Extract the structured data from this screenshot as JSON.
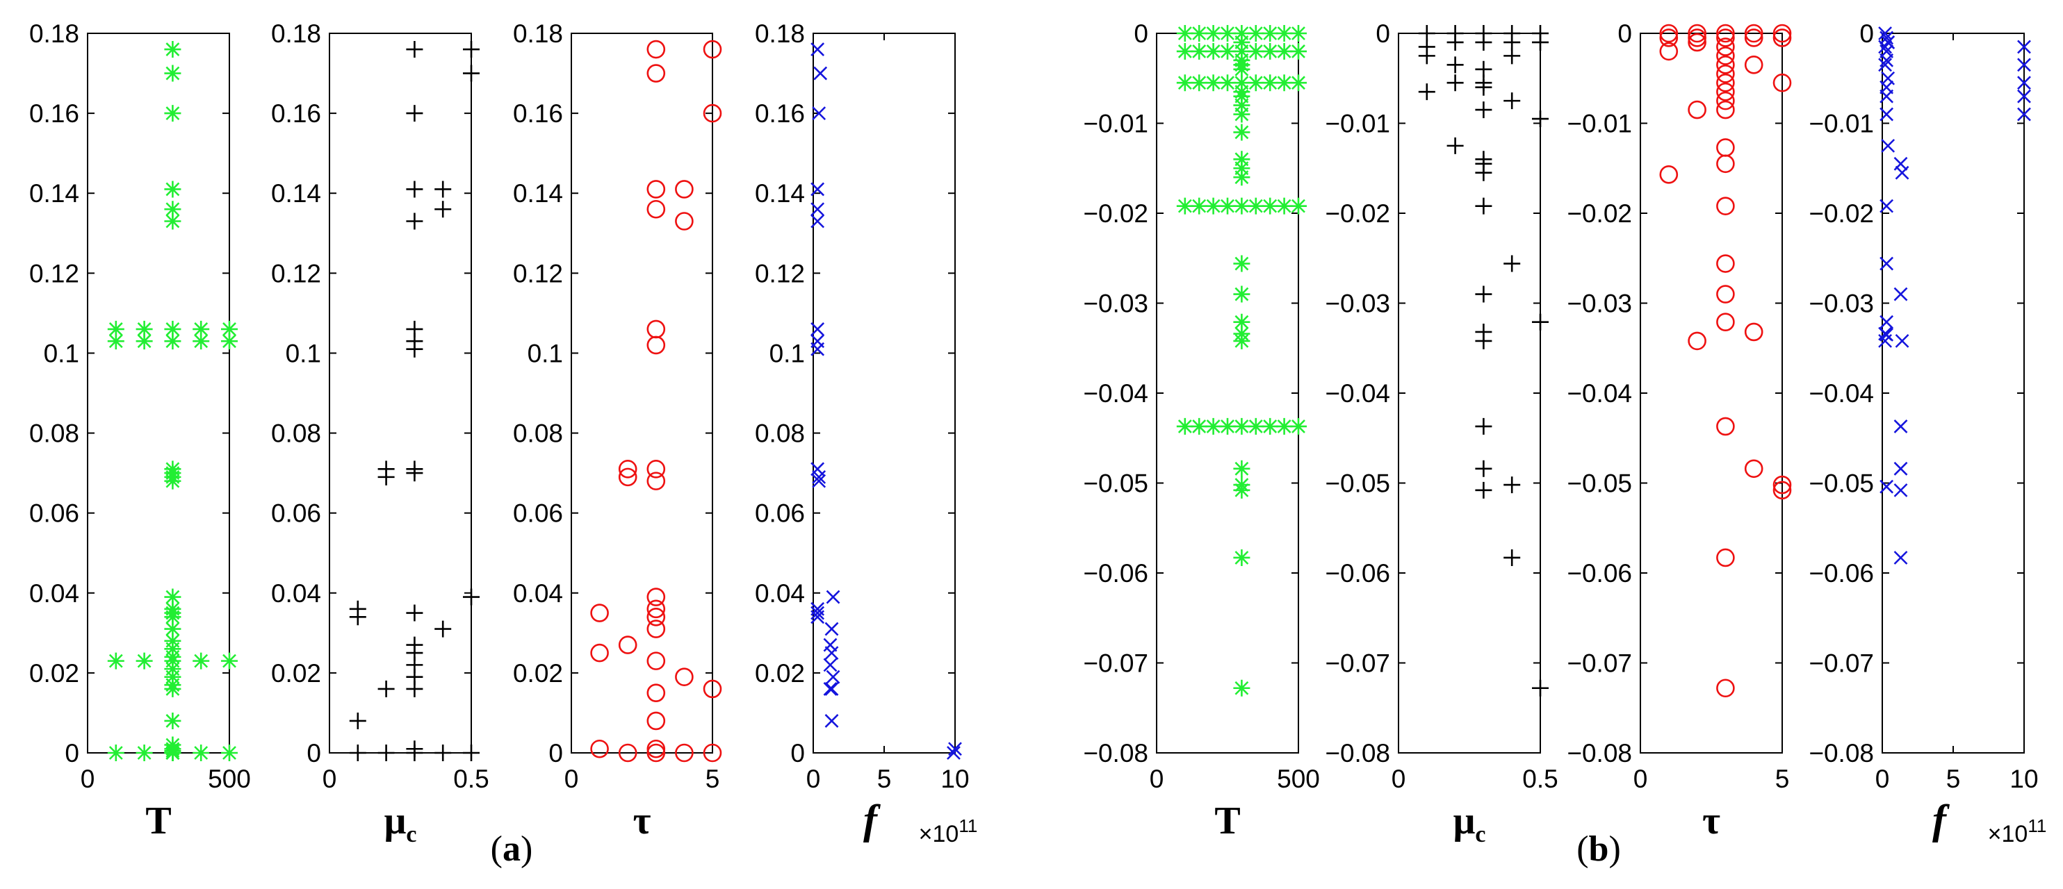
{
  "figure": {
    "panel_labels": [
      {
        "open": "(",
        "letter": "a",
        "close": ")"
      },
      {
        "open": "(",
        "letter": "b",
        "close": ")"
      }
    ]
  },
  "chart_data": [
    {
      "id": "a-T",
      "type": "scatter",
      "marker": "asterisk",
      "color": "#22ee33",
      "xlabel": "T",
      "xlabel_style": "bold",
      "xlim": [
        0,
        500
      ],
      "ylim": [
        0,
        0.18
      ],
      "xticks": [
        {
          "v": 0,
          "label": "0"
        },
        {
          "v": 500,
          "label": "500"
        }
      ],
      "yticks": [
        0,
        0.02,
        0.04,
        0.06,
        0.08,
        0.1,
        0.12,
        0.14,
        0.16,
        0.18
      ],
      "ytick_labels": [
        "0",
        "0.02",
        "0.04",
        "0.06",
        "0.08",
        "0.1",
        "0.12",
        "0.14",
        "0.16",
        "0.18"
      ],
      "x": [
        300,
        300,
        300,
        300,
        300,
        300,
        300,
        100,
        200,
        400,
        500,
        100,
        200,
        400,
        500,
        300,
        300,
        300,
        300,
        300,
        300,
        300,
        300,
        300,
        300,
        300,
        300,
        300,
        300,
        300,
        300,
        300,
        300,
        300,
        300,
        300,
        300,
        300,
        300,
        300,
        300,
        300,
        300,
        100,
        200,
        400,
        500,
        100,
        200,
        400,
        500
      ],
      "y": [
        0.176,
        0.17,
        0.16,
        0.141,
        0.136,
        0.133,
        0.106,
        0.106,
        0.106,
        0.106,
        0.106,
        0.103,
        0.103,
        0.103,
        0.103,
        0.103,
        0.071,
        0.07,
        0.069,
        0.068,
        0.039,
        0.036,
        0.035,
        0.034,
        0.031,
        0.028,
        0.026,
        0.024,
        0.023,
        0.021,
        0.019,
        0.017,
        0.016,
        0.008,
        0.002,
        0.001,
        0.0005,
        0.0,
        0.0,
        0.0,
        0.0,
        0.0,
        0.0,
        0.023,
        0.023,
        0.023,
        0.023,
        0.0,
        0.0,
        0.0,
        0.0
      ]
    },
    {
      "id": "a-mu",
      "type": "scatter",
      "marker": "plus",
      "color": "#000000",
      "xlabel": "μ",
      "xlabel_sub": "c",
      "xlim": [
        0,
        0.5
      ],
      "ylim": [
        0,
        0.18
      ],
      "xticks": [
        {
          "v": 0,
          "label": "0"
        },
        {
          "v": 0.5,
          "label": "0.5"
        }
      ],
      "yticks": [
        0,
        0.02,
        0.04,
        0.06,
        0.08,
        0.1,
        0.12,
        0.14,
        0.16,
        0.18
      ],
      "ytick_labels": [
        "0",
        "0.02",
        "0.04",
        "0.06",
        "0.08",
        "0.1",
        "0.12",
        "0.14",
        "0.16",
        "0.18"
      ],
      "x": [
        0.3,
        0.5,
        0.5,
        0.3,
        0.3,
        0.4,
        0.3,
        0.4,
        0.3,
        0.3,
        0.3,
        0.2,
        0.2,
        0.3,
        0.3,
        0.1,
        0.1,
        0.5,
        0.3,
        0.4,
        0.3,
        0.3,
        0.3,
        0.3,
        0.3,
        0.2,
        0.1,
        0.1,
        0.2,
        0.3,
        0.3,
        0.4,
        0.5
      ],
      "y": [
        0.176,
        0.176,
        0.17,
        0.16,
        0.141,
        0.141,
        0.133,
        0.136,
        0.106,
        0.103,
        0.101,
        0.071,
        0.069,
        0.071,
        0.07,
        0.036,
        0.034,
        0.039,
        0.035,
        0.031,
        0.027,
        0.025,
        0.022,
        0.019,
        0.016,
        0.016,
        0.008,
        0.0,
        0.0,
        0.001,
        0.0,
        0.0,
        0.0
      ]
    },
    {
      "id": "a-tau",
      "type": "scatter",
      "marker": "circle",
      "color": "#ee1111",
      "xlabel": "τ",
      "xlim": [
        0,
        5
      ],
      "ylim": [
        0,
        0.18
      ],
      "xticks": [
        {
          "v": 0,
          "label": "0"
        },
        {
          "v": 5,
          "label": "5"
        }
      ],
      "yticks": [
        0,
        0.02,
        0.04,
        0.06,
        0.08,
        0.1,
        0.12,
        0.14,
        0.16,
        0.18
      ],
      "ytick_labels": [
        "0",
        "0.02",
        "0.04",
        "0.06",
        "0.08",
        "0.1",
        "0.12",
        "0.14",
        "0.16",
        "0.18"
      ],
      "x": [
        3,
        5,
        3,
        5,
        3,
        4,
        3,
        4,
        3,
        3,
        2,
        2,
        3,
        3,
        1,
        1,
        2,
        3,
        3,
        3,
        3,
        3,
        4,
        5,
        3,
        3,
        1,
        2,
        3,
        3,
        4,
        5
      ],
      "y": [
        0.176,
        0.176,
        0.17,
        0.16,
        0.141,
        0.141,
        0.136,
        0.133,
        0.106,
        0.102,
        0.071,
        0.069,
        0.071,
        0.068,
        0.035,
        0.025,
        0.027,
        0.039,
        0.036,
        0.034,
        0.031,
        0.023,
        0.019,
        0.016,
        0.015,
        0.008,
        0.001,
        0.0,
        0.0,
        0.001,
        0.0,
        0.0
      ]
    },
    {
      "id": "a-f",
      "type": "scatter",
      "marker": "cross",
      "color": "#1515dd",
      "xlabel": "f",
      "xlabel_style": "bold-italic",
      "exponent_label": "×10",
      "exponent_power": "11",
      "xlim": [
        0,
        10
      ],
      "ylim": [
        0,
        0.18
      ],
      "xticks": [
        {
          "v": 0,
          "label": "0"
        },
        {
          "v": 5,
          "label": "5"
        },
        {
          "v": 10,
          "label": "10"
        }
      ],
      "yticks": [
        0,
        0.02,
        0.04,
        0.06,
        0.08,
        0.1,
        0.12,
        0.14,
        0.16,
        0.18
      ],
      "ytick_labels": [
        "0",
        "0.02",
        "0.04",
        "0.06",
        "0.08",
        "0.1",
        "0.12",
        "0.14",
        "0.16",
        "0.18"
      ],
      "x": [
        0.3,
        0.5,
        0.4,
        0.3,
        0.3,
        0.3,
        0.3,
        0.3,
        0.3,
        0.3,
        0.4,
        0.4,
        0.3,
        0.3,
        0.3,
        1.4,
        1.3,
        1.2,
        1.3,
        1.2,
        1.4,
        1.3,
        1.2,
        1.3,
        10,
        9.9
      ],
      "y": [
        0.176,
        0.17,
        0.16,
        0.141,
        0.136,
        0.133,
        0.106,
        0.103,
        0.101,
        0.071,
        0.069,
        0.068,
        0.036,
        0.035,
        0.034,
        0.039,
        0.031,
        0.027,
        0.025,
        0.022,
        0.019,
        0.016,
        0.016,
        0.008,
        0.001,
        0.0
      ]
    },
    {
      "id": "b-T",
      "type": "scatter",
      "marker": "asterisk",
      "color": "#22ee33",
      "xlabel": "T",
      "xlabel_style": "bold",
      "xlim": [
        0,
        500
      ],
      "ylim": [
        -0.08,
        0
      ],
      "xticks": [
        {
          "v": 0,
          "label": "0"
        },
        {
          "v": 500,
          "label": "500"
        }
      ],
      "yticks": [
        0,
        -0.01,
        -0.02,
        -0.03,
        -0.04,
        -0.05,
        -0.06,
        -0.07,
        -0.08
      ],
      "ytick_labels": [
        "0",
        "−0.01",
        "−0.02",
        "−0.03",
        "−0.04",
        "−0.05",
        "−0.06",
        "−0.07",
        "−0.08"
      ],
      "x": [
        100,
        150,
        200,
        250,
        300,
        350,
        400,
        450,
        500,
        100,
        150,
        200,
        250,
        300,
        350,
        400,
        450,
        500,
        100,
        150,
        200,
        250,
        300,
        350,
        400,
        450,
        500,
        100,
        150,
        200,
        250,
        300,
        350,
        400,
        450,
        500,
        100,
        150,
        200,
        250,
        300,
        350,
        400,
        450,
        500,
        300,
        300,
        300,
        300,
        300,
        300,
        300,
        300,
        300,
        300,
        300,
        300,
        300,
        300,
        300,
        300,
        300,
        300,
        300,
        300,
        300,
        300
      ],
      "y": [
        0,
        0,
        0,
        0,
        0,
        0,
        0,
        0,
        0,
        -0.002,
        -0.002,
        -0.002,
        -0.002,
        -0.002,
        -0.002,
        -0.002,
        -0.002,
        -0.002,
        -0.0055,
        -0.0055,
        -0.0055,
        -0.0055,
        -0.0055,
        -0.0055,
        -0.0055,
        -0.0055,
        -0.0055,
        -0.0192,
        -0.0192,
        -0.0192,
        -0.0192,
        -0.0192,
        -0.0192,
        -0.0192,
        -0.0192,
        -0.0192,
        -0.0437,
        -0.0437,
        -0.0437,
        -0.0437,
        -0.0437,
        -0.0437,
        -0.0437,
        -0.0437,
        -0.0437,
        -0.001,
        -0.003,
        -0.004,
        -0.007,
        -0.009,
        -0.011,
        -0.014,
        -0.015,
        -0.016,
        -0.0256,
        -0.029,
        -0.0321,
        -0.0334,
        -0.0342,
        -0.0484,
        -0.0502,
        -0.0508,
        -0.0583,
        -0.0728,
        -0.008,
        -0.0065,
        -0.0035
      ]
    },
    {
      "id": "b-mu",
      "type": "scatter",
      "marker": "plus",
      "color": "#000000",
      "xlabel": "μ",
      "xlabel_sub": "c",
      "xlim": [
        0,
        0.5
      ],
      "ylim": [
        -0.08,
        0
      ],
      "xticks": [
        {
          "v": 0,
          "label": "0"
        },
        {
          "v": 0.5,
          "label": "0.5"
        }
      ],
      "yticks": [
        0,
        -0.01,
        -0.02,
        -0.03,
        -0.04,
        -0.05,
        -0.06,
        -0.07,
        -0.08
      ],
      "ytick_labels": [
        "0",
        "−0.01",
        "−0.02",
        "−0.03",
        "−0.04",
        "−0.05",
        "−0.06",
        "−0.07",
        "−0.08"
      ],
      "x": [
        0.1,
        0.2,
        0.3,
        0.4,
        0.5,
        0.1,
        0.2,
        0.3,
        0.4,
        0.5,
        0.1,
        0.2,
        0.3,
        0.4,
        0.3,
        0.1,
        0.2,
        0.3,
        0.4,
        0.5,
        0.3,
        0.3,
        0.2,
        0.3,
        0.3,
        0.4,
        0.5,
        0.3,
        0.3,
        0.3,
        0.3,
        0.4,
        0.5,
        0.3,
        0.3,
        0.3,
        0.4
      ],
      "y": [
        0,
        0,
        0,
        0,
        0,
        -0.0015,
        -0.001,
        -0.001,
        -0.001,
        -0.001,
        -0.0025,
        -0.0035,
        -0.004,
        -0.0025,
        -0.0055,
        -0.0065,
        -0.0055,
        -0.006,
        -0.0075,
        -0.0095,
        -0.0085,
        -0.0155,
        -0.0125,
        -0.0145,
        -0.0192,
        -0.0256,
        -0.0321,
        -0.0332,
        -0.0342,
        -0.0437,
        -0.0484,
        -0.0502,
        -0.0728,
        -0.0508,
        -0.029,
        -0.014,
        -0.0583
      ]
    },
    {
      "id": "b-tau",
      "type": "scatter",
      "marker": "circle",
      "color": "#ee1111",
      "xlabel": "τ",
      "xlim": [
        0,
        5
      ],
      "ylim": [
        -0.08,
        0
      ],
      "xticks": [
        {
          "v": 0,
          "label": "0"
        },
        {
          "v": 5,
          "label": "5"
        }
      ],
      "yticks": [
        0,
        -0.01,
        -0.02,
        -0.03,
        -0.04,
        -0.05,
        -0.06,
        -0.07,
        -0.08
      ],
      "ytick_labels": [
        "0",
        "−0.01",
        "−0.02",
        "−0.03",
        "−0.04",
        "−0.05",
        "−0.06",
        "−0.07",
        "−0.08"
      ],
      "x": [
        1,
        2,
        3,
        4,
        5,
        1,
        2,
        3,
        4,
        5,
        1,
        2,
        3,
        4,
        5,
        3,
        3,
        3,
        3,
        3,
        3,
        1,
        2,
        3,
        3,
        3,
        3,
        3,
        3,
        4,
        4,
        3,
        5,
        5,
        3,
        3,
        2,
        3
      ],
      "y": [
        0,
        0,
        0,
        0,
        0,
        -0.0005,
        -0.0005,
        -0.0005,
        -0.0005,
        -0.0005,
        -0.002,
        -0.001,
        -0.0015,
        -0.0035,
        -0.0055,
        -0.0025,
        -0.0035,
        -0.0055,
        -0.0065,
        -0.0075,
        -0.0085,
        -0.0157,
        -0.0085,
        -0.0127,
        -0.0145,
        -0.0192,
        -0.0256,
        -0.029,
        -0.0321,
        -0.0332,
        -0.0484,
        -0.0437,
        -0.0502,
        -0.0508,
        -0.0583,
        -0.0728,
        -0.0342,
        -0.0045
      ]
    },
    {
      "id": "b-f",
      "type": "scatter",
      "marker": "cross",
      "color": "#1515dd",
      "xlabel": "f",
      "xlabel_style": "bold-italic",
      "exponent_label": "×10",
      "exponent_power": "11",
      "xlim": [
        0,
        10
      ],
      "ylim": [
        -0.08,
        0
      ],
      "xticks": [
        {
          "v": 0,
          "label": "0"
        },
        {
          "v": 5,
          "label": "5"
        },
        {
          "v": 10,
          "label": "10"
        }
      ],
      "yticks": [
        0,
        -0.01,
        -0.02,
        -0.03,
        -0.04,
        -0.05,
        -0.06,
        -0.07,
        -0.08
      ],
      "ytick_labels": [
        "0",
        "−0.01",
        "−0.02",
        "−0.03",
        "−0.04",
        "−0.05",
        "−0.06",
        "−0.07",
        "−0.08"
      ],
      "x": [
        0.2,
        0.3,
        0.4,
        0.2,
        0.3,
        0.3,
        0.2,
        0.4,
        0.3,
        0.3,
        0.3,
        0.4,
        0.3,
        0.3,
        0.3,
        0.2,
        0.3,
        0.2,
        0.3,
        1.3,
        1.4,
        1.3,
        1.4,
        1.3,
        1.3,
        1.3,
        1.3,
        10,
        10,
        10,
        10,
        10,
        0.4
      ],
      "y": [
        0,
        -0.0005,
        -0.001,
        -0.0015,
        -0.002,
        -0.003,
        -0.0035,
        -0.005,
        -0.006,
        -0.007,
        -0.009,
        -0.0125,
        -0.0192,
        -0.0256,
        -0.0321,
        -0.0334,
        -0.0504,
        -0.0342,
        -0.0335,
        -0.0145,
        -0.0155,
        -0.029,
        -0.0342,
        -0.0437,
        -0.0484,
        -0.0508,
        -0.0583,
        -0.0015,
        -0.0035,
        -0.0055,
        -0.007,
        -0.009,
        -0.001
      ]
    }
  ]
}
